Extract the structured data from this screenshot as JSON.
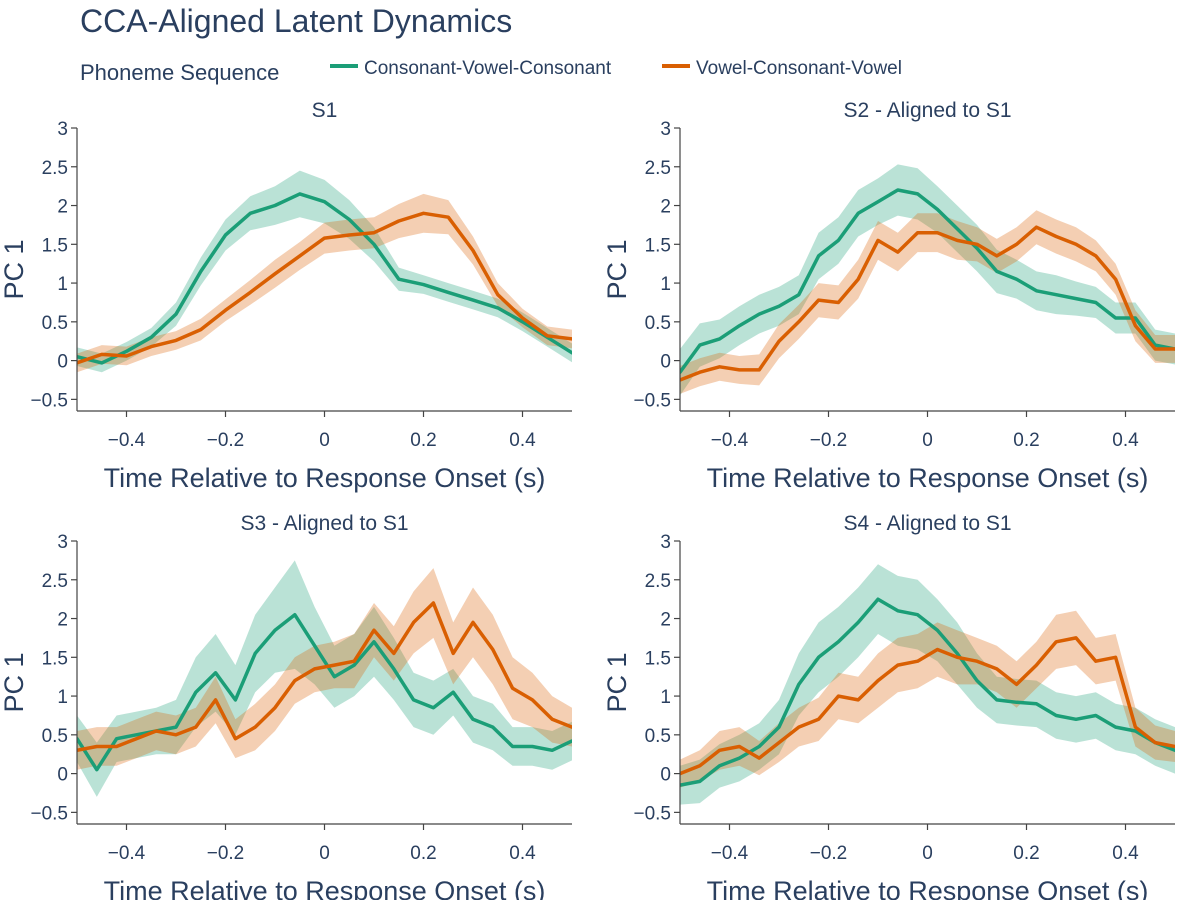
{
  "figure": {
    "title": "CCA-Aligned Latent Dynamics",
    "legend_title": "Phoneme Sequence"
  },
  "chart_data": [
    {
      "type": "line",
      "title": "S1",
      "xlabel": "Time Relative to Response Onset (s)",
      "ylabel": "PC 1",
      "xlim": [
        -0.5,
        0.5
      ],
      "ylim": [
        -0.65,
        3.0
      ],
      "xticks": [
        -0.4,
        -0.2,
        0,
        0.2,
        0.4
      ],
      "xtick_labels": [
        "−0.4",
        "−0.2",
        "0",
        "0.2",
        "0.4"
      ],
      "yticks": [
        -0.5,
        0,
        0.5,
        1,
        1.5,
        2,
        2.5,
        3
      ],
      "ytick_labels": [
        "−0.5",
        "0",
        "0.5",
        "1",
        "1.5",
        "2",
        "2.5",
        "3"
      ],
      "grid": false,
      "legend_position": "top-left",
      "series": [
        {
          "name": "Consonant-Vowel-Consonant",
          "color": "#1b9e77",
          "x": [
            -0.5,
            -0.45,
            -0.4,
            -0.35,
            -0.3,
            -0.25,
            -0.2,
            -0.15,
            -0.1,
            -0.05,
            0,
            0.05,
            0.1,
            0.15,
            0.2,
            0.25,
            0.3,
            0.35,
            0.4,
            0.45,
            0.5
          ],
          "y": [
            0.05,
            -0.03,
            0.12,
            0.3,
            0.6,
            1.15,
            1.62,
            1.9,
            2.0,
            2.15,
            2.05,
            1.82,
            1.5,
            1.05,
            0.98,
            0.88,
            0.78,
            0.68,
            0.5,
            0.3,
            0.1
          ],
          "band": [
            0.12,
            0.12,
            0.12,
            0.12,
            0.15,
            0.18,
            0.2,
            0.22,
            0.25,
            0.3,
            0.28,
            0.25,
            0.22,
            0.15,
            0.12,
            0.12,
            0.12,
            0.12,
            0.12,
            0.12,
            0.12
          ]
        },
        {
          "name": "Vowel-Consonant-Vowel",
          "color": "#d95f02",
          "x": [
            -0.5,
            -0.45,
            -0.4,
            -0.35,
            -0.3,
            -0.25,
            -0.2,
            -0.15,
            -0.1,
            -0.05,
            0,
            0.05,
            0.1,
            0.15,
            0.2,
            0.25,
            0.3,
            0.35,
            0.4,
            0.45,
            0.5
          ],
          "y": [
            -0.03,
            0.08,
            0.06,
            0.18,
            0.26,
            0.4,
            0.65,
            0.88,
            1.12,
            1.35,
            1.58,
            1.62,
            1.65,
            1.8,
            1.9,
            1.85,
            1.42,
            0.85,
            0.55,
            0.32,
            0.28
          ],
          "band": [
            0.12,
            0.12,
            0.12,
            0.12,
            0.12,
            0.14,
            0.14,
            0.16,
            0.18,
            0.18,
            0.2,
            0.2,
            0.2,
            0.22,
            0.25,
            0.22,
            0.18,
            0.15,
            0.12,
            0.12,
            0.12
          ]
        }
      ]
    },
    {
      "type": "line",
      "title": "S2 - Aligned to S1",
      "xlabel": "Time Relative to Response Onset (s)",
      "ylabel": "PC 1",
      "xlim": [
        -0.5,
        0.5
      ],
      "ylim": [
        -0.65,
        3.0
      ],
      "xticks": [
        -0.4,
        -0.2,
        0,
        0.2,
        0.4
      ],
      "xtick_labels": [
        "−0.4",
        "−0.2",
        "0",
        "0.2",
        "0.4"
      ],
      "yticks": [
        -0.5,
        0,
        0.5,
        1,
        1.5,
        2,
        2.5,
        3
      ],
      "ytick_labels": [
        "−0.5",
        "0",
        "0.5",
        "1",
        "1.5",
        "2",
        "2.5",
        "3"
      ],
      "grid": false,
      "series": [
        {
          "name": "Consonant-Vowel-Consonant",
          "color": "#1b9e77",
          "x": [
            -0.5,
            -0.46,
            -0.42,
            -0.38,
            -0.34,
            -0.3,
            -0.26,
            -0.22,
            -0.18,
            -0.14,
            -0.1,
            -0.06,
            -0.02,
            0.02,
            0.06,
            0.1,
            0.14,
            0.18,
            0.22,
            0.26,
            0.3,
            0.34,
            0.38,
            0.42,
            0.46,
            0.5
          ],
          "y": [
            -0.15,
            0.2,
            0.28,
            0.45,
            0.6,
            0.7,
            0.85,
            1.35,
            1.55,
            1.9,
            2.05,
            2.2,
            2.15,
            1.95,
            1.7,
            1.45,
            1.15,
            1.05,
            0.9,
            0.85,
            0.8,
            0.75,
            0.55,
            0.55,
            0.2,
            0.15
          ],
          "band": [
            0.3,
            0.28,
            0.25,
            0.25,
            0.25,
            0.25,
            0.25,
            0.3,
            0.3,
            0.3,
            0.3,
            0.33,
            0.33,
            0.3,
            0.3,
            0.3,
            0.28,
            0.25,
            0.25,
            0.25,
            0.22,
            0.2,
            0.2,
            0.2,
            0.2,
            0.2
          ]
        },
        {
          "name": "Vowel-Consonant-Vowel",
          "color": "#d95f02",
          "x": [
            -0.5,
            -0.46,
            -0.42,
            -0.38,
            -0.34,
            -0.3,
            -0.26,
            -0.22,
            -0.18,
            -0.14,
            -0.1,
            -0.06,
            -0.02,
            0.02,
            0.06,
            0.1,
            0.14,
            0.18,
            0.22,
            0.26,
            0.3,
            0.34,
            0.38,
            0.42,
            0.46,
            0.5
          ],
          "y": [
            -0.25,
            -0.15,
            -0.08,
            -0.12,
            -0.12,
            0.25,
            0.5,
            0.78,
            0.75,
            1.05,
            1.55,
            1.4,
            1.65,
            1.65,
            1.55,
            1.5,
            1.35,
            1.5,
            1.72,
            1.6,
            1.5,
            1.35,
            1.05,
            0.45,
            0.15,
            0.15
          ],
          "band": [
            0.18,
            0.18,
            0.18,
            0.18,
            0.2,
            0.22,
            0.22,
            0.22,
            0.22,
            0.25,
            0.25,
            0.25,
            0.25,
            0.25,
            0.25,
            0.22,
            0.22,
            0.22,
            0.22,
            0.22,
            0.22,
            0.2,
            0.2,
            0.2,
            0.18,
            0.18
          ]
        }
      ]
    },
    {
      "type": "line",
      "title": "S3 - Aligned to S1",
      "xlabel": "Time Relative to Response Onset (s)",
      "ylabel": "PC 1",
      "xlim": [
        -0.5,
        0.5
      ],
      "ylim": [
        -0.65,
        3.0
      ],
      "xticks": [
        -0.4,
        -0.2,
        0,
        0.2,
        0.4
      ],
      "xtick_labels": [
        "−0.4",
        "−0.2",
        "0",
        "0.2",
        "0.4"
      ],
      "yticks": [
        -0.5,
        0,
        0.5,
        1,
        1.5,
        2,
        2.5,
        3
      ],
      "ytick_labels": [
        "−0.5",
        "0",
        "0.5",
        "1",
        "1.5",
        "2",
        "2.5",
        "3"
      ],
      "grid": false,
      "series": [
        {
          "name": "Consonant-Vowel-Consonant",
          "color": "#1b9e77",
          "x": [
            -0.5,
            -0.46,
            -0.42,
            -0.38,
            -0.34,
            -0.3,
            -0.26,
            -0.22,
            -0.18,
            -0.14,
            -0.1,
            -0.06,
            -0.02,
            0.02,
            0.06,
            0.1,
            0.14,
            0.18,
            0.22,
            0.26,
            0.3,
            0.34,
            0.38,
            0.42,
            0.46,
            0.5
          ],
          "y": [
            0.45,
            0.05,
            0.45,
            0.5,
            0.55,
            0.6,
            1.05,
            1.3,
            0.95,
            1.55,
            1.85,
            2.05,
            1.65,
            1.25,
            1.4,
            1.7,
            1.35,
            0.95,
            0.85,
            1.05,
            0.7,
            0.6,
            0.35,
            0.35,
            0.3,
            0.42
          ],
          "band": [
            0.3,
            0.35,
            0.3,
            0.3,
            0.3,
            0.35,
            0.45,
            0.5,
            0.45,
            0.5,
            0.55,
            0.7,
            0.5,
            0.4,
            0.4,
            0.45,
            0.4,
            0.35,
            0.35,
            0.3,
            0.3,
            0.3,
            0.25,
            0.25,
            0.25,
            0.25
          ]
        },
        {
          "name": "Vowel-Consonant-Vowel",
          "color": "#d95f02",
          "x": [
            -0.5,
            -0.46,
            -0.42,
            -0.38,
            -0.34,
            -0.3,
            -0.26,
            -0.22,
            -0.18,
            -0.14,
            -0.1,
            -0.06,
            -0.02,
            0.02,
            0.06,
            0.1,
            0.14,
            0.18,
            0.22,
            0.26,
            0.3,
            0.34,
            0.38,
            0.42,
            0.46,
            0.5
          ],
          "y": [
            0.3,
            0.35,
            0.35,
            0.45,
            0.55,
            0.5,
            0.6,
            0.95,
            0.45,
            0.6,
            0.85,
            1.2,
            1.35,
            1.4,
            1.45,
            1.85,
            1.55,
            1.95,
            2.2,
            1.55,
            1.95,
            1.6,
            1.1,
            0.95,
            0.7,
            0.6
          ],
          "band": [
            0.25,
            0.25,
            0.25,
            0.25,
            0.25,
            0.25,
            0.25,
            0.3,
            0.25,
            0.3,
            0.3,
            0.3,
            0.3,
            0.3,
            0.35,
            0.35,
            0.35,
            0.4,
            0.45,
            0.4,
            0.45,
            0.45,
            0.4,
            0.35,
            0.3,
            0.25
          ]
        }
      ]
    },
    {
      "type": "line",
      "title": "S4 - Aligned to S1",
      "xlabel": "Time Relative to Response Onset (s)",
      "ylabel": "PC 1",
      "xlim": [
        -0.5,
        0.5
      ],
      "ylim": [
        -0.65,
        3.0
      ],
      "xticks": [
        -0.4,
        -0.2,
        0,
        0.2,
        0.4
      ],
      "xtick_labels": [
        "−0.4",
        "−0.2",
        "0",
        "0.2",
        "0.4"
      ],
      "yticks": [
        -0.5,
        0,
        0.5,
        1,
        1.5,
        2,
        2.5,
        3
      ],
      "ytick_labels": [
        "−0.5",
        "0",
        "0.5",
        "1",
        "1.5",
        "2",
        "2.5",
        "3"
      ],
      "grid": false,
      "series": [
        {
          "name": "Consonant-Vowel-Consonant",
          "color": "#1b9e77",
          "x": [
            -0.5,
            -0.46,
            -0.42,
            -0.38,
            -0.34,
            -0.3,
            -0.26,
            -0.22,
            -0.18,
            -0.14,
            -0.1,
            -0.06,
            -0.02,
            0.02,
            0.06,
            0.1,
            0.14,
            0.18,
            0.22,
            0.26,
            0.3,
            0.34,
            0.38,
            0.42,
            0.46,
            0.5
          ],
          "y": [
            -0.15,
            -0.1,
            0.1,
            0.2,
            0.35,
            0.6,
            1.15,
            1.5,
            1.7,
            1.95,
            2.25,
            2.1,
            2.05,
            1.85,
            1.55,
            1.2,
            0.95,
            0.92,
            0.9,
            0.75,
            0.7,
            0.75,
            0.6,
            0.55,
            0.4,
            0.3
          ],
          "band": [
            0.25,
            0.28,
            0.28,
            0.3,
            0.3,
            0.35,
            0.4,
            0.45,
            0.45,
            0.45,
            0.45,
            0.45,
            0.45,
            0.4,
            0.4,
            0.35,
            0.3,
            0.3,
            0.3,
            0.3,
            0.3,
            0.3,
            0.3,
            0.3,
            0.3,
            0.3
          ]
        },
        {
          "name": "Vowel-Consonant-Vowel",
          "color": "#d95f02",
          "x": [
            -0.5,
            -0.46,
            -0.42,
            -0.38,
            -0.34,
            -0.3,
            -0.26,
            -0.22,
            -0.18,
            -0.14,
            -0.1,
            -0.06,
            -0.02,
            0.02,
            0.06,
            0.1,
            0.14,
            0.18,
            0.22,
            0.26,
            0.3,
            0.34,
            0.38,
            0.42,
            0.46,
            0.5
          ],
          "y": [
            0.0,
            0.1,
            0.3,
            0.35,
            0.2,
            0.4,
            0.6,
            0.7,
            1.0,
            0.95,
            1.2,
            1.4,
            1.45,
            1.6,
            1.5,
            1.45,
            1.35,
            1.15,
            1.4,
            1.7,
            1.75,
            1.45,
            1.5,
            0.6,
            0.4,
            0.35
          ],
          "band": [
            0.18,
            0.2,
            0.25,
            0.25,
            0.22,
            0.25,
            0.25,
            0.28,
            0.3,
            0.3,
            0.35,
            0.35,
            0.35,
            0.35,
            0.35,
            0.3,
            0.3,
            0.3,
            0.3,
            0.35,
            0.35,
            0.3,
            0.3,
            0.25,
            0.22,
            0.2
          ]
        }
      ]
    }
  ]
}
